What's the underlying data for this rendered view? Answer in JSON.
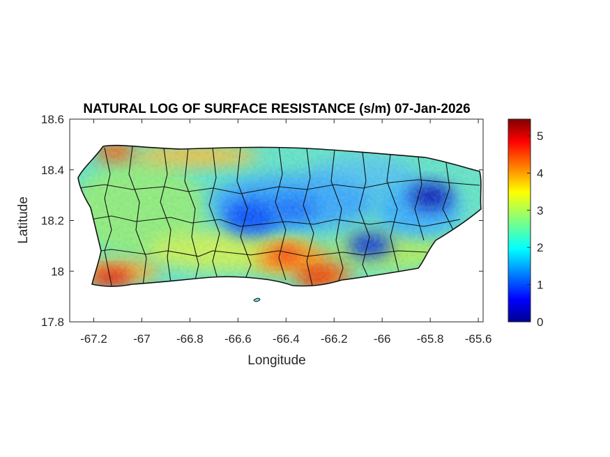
{
  "chart_data": {
    "type": "heatmap",
    "title": "NATURAL LOG OF SURFACE RESISTANCE (s/m) 07-Jan-2026",
    "xlabel": "Longitude",
    "ylabel": "Latitude",
    "xlim": [
      -67.3,
      -65.58
    ],
    "ylim": [
      17.8,
      18.6
    ],
    "x_ticks": [
      -67.2,
      -67,
      -66.8,
      -66.6,
      -66.4,
      -66.2,
      -66,
      -65.8,
      -65.6
    ],
    "x_tick_labels": [
      "-67.2",
      "-67",
      "-66.8",
      "-66.6",
      "-66.4",
      "-66.2",
      "-66",
      "-65.8",
      "-65.6"
    ],
    "y_ticks": [
      17.8,
      18,
      18.2,
      18.4,
      18.6
    ],
    "y_tick_labels": [
      "17.8",
      "18",
      "18.2",
      "18.4",
      "18.6"
    ],
    "colorbar": {
      "colormap": "jet",
      "range": [
        0,
        5.45
      ],
      "ticks": [
        0,
        1,
        2,
        3,
        4,
        5
      ],
      "tick_labels": [
        "0",
        "1",
        "2",
        "3",
        "4",
        "5"
      ]
    },
    "grid": false,
    "regions": [
      {
        "name": "",
        "lon": -67.15,
        "lat": 18.48,
        "value": 4.6
      },
      {
        "name": "",
        "lon": -66.9,
        "lat": 18.47,
        "value": 4.2
      },
      {
        "name": "",
        "lon": -67.15,
        "lat": 17.98,
        "value": 4.5
      },
      {
        "name": "",
        "lon": -66.95,
        "lat": 17.99,
        "value": 3.8
      },
      {
        "name": "",
        "lon": -66.4,
        "lat": 18.03,
        "value": 4.3
      },
      {
        "name": "",
        "lon": -66.25,
        "lat": 17.98,
        "value": 4.4
      },
      {
        "name": "",
        "lon": -66.52,
        "lat": 18.2,
        "value": 1.3
      },
      {
        "name": "",
        "lon": -66.05,
        "lat": 18.1,
        "value": 0.9
      },
      {
        "name": "",
        "lon": -65.8,
        "lat": 18.28,
        "value": 0.6
      },
      {
        "name": "",
        "lon": -66.7,
        "lat": 18.3,
        "value": 2.1
      }
    ]
  }
}
